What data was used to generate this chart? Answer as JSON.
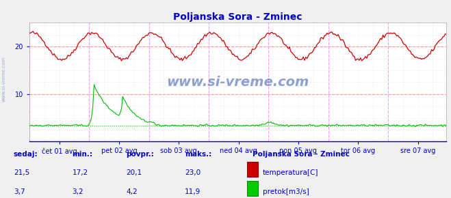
{
  "title": "Poljanska Sora - Zminec",
  "title_color": "#0000cc",
  "bg_color": "#f0f0f0",
  "plot_bg_color": "#ffffff",
  "outer_bg_color": "#e8e8f0",
  "grid_color_h": "#ff9999",
  "grid_color_v": "#ff99ff",
  "grid_color_minor": "#dddddd",
  "ylim": [
    0,
    25
  ],
  "yticks": [
    10,
    20
  ],
  "ylabel_color": "#0000cc",
  "xlabel_color": "#0000cc",
  "temp_color": "#cc0000",
  "flow_color": "#00bb00",
  "watermark_color": "#3355aa",
  "watermark_alpha": 0.55,
  "n_points": 336,
  "x_labels": [
    "čet 01 avg",
    "pet 02 avg",
    "sob 03 avg",
    "ned 04 avg",
    "pon 05 avg",
    "tor 06 avg",
    "sre 07 avg"
  ],
  "x_tick_positions": [
    24,
    72,
    120,
    168,
    216,
    264,
    312
  ],
  "vline_positions": [
    0,
    48,
    96,
    144,
    192,
    240,
    288,
    335
  ],
  "legend_title": "Poljanska Sora - Zminec",
  "info_color": "#0000cc",
  "info_labels": [
    "sedaj:",
    "min.:",
    "povpr.:",
    "maks.:"
  ],
  "temp_stats": [
    "21,5",
    "17,2",
    "20,1",
    "23,0"
  ],
  "flow_stats": [
    "3,7",
    "3,2",
    "4,2",
    "11,9"
  ],
  "temp_label": "temperatura[C]",
  "flow_label": "pretok[m3/s]",
  "flow_baseline": 3.4,
  "flow_dotted_color": "#00cc00"
}
